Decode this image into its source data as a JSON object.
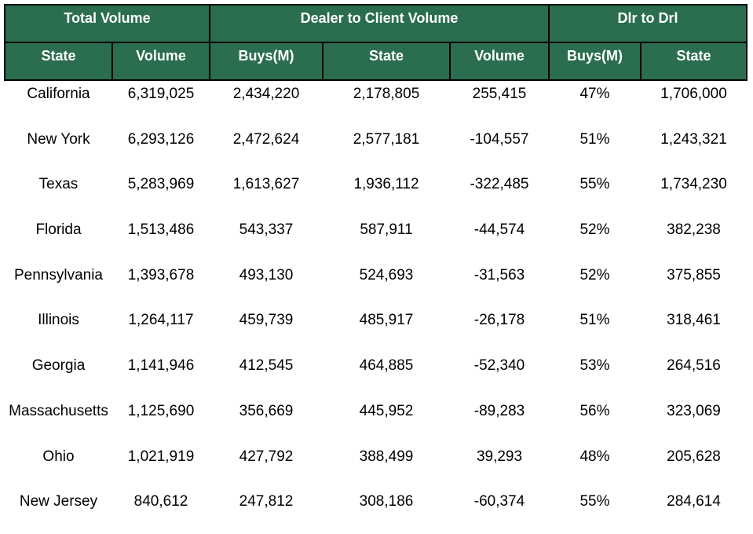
{
  "table": {
    "group_headers": [
      {
        "label": "Total Volume",
        "span": 2
      },
      {
        "label": "Dealer to Client Volume",
        "span": 3
      },
      {
        "label": "Dlr to Drl",
        "span": 2
      }
    ],
    "column_headers": [
      "State",
      "Volume",
      "Buys(M)",
      "State",
      "Volume",
      "Buys(M)",
      "State"
    ],
    "rows": [
      [
        "California",
        "6,319,025",
        "2,434,220",
        "2,178,805",
        "255,415",
        "47%",
        "1,706,000"
      ],
      [
        "New York",
        "6,293,126",
        "2,472,624",
        "2,577,181",
        "-104,557",
        "51%",
        "1,243,321"
      ],
      [
        "Texas",
        "5,283,969",
        "1,613,627",
        "1,936,112",
        "-322,485",
        "55%",
        "1,734,230"
      ],
      [
        "Florida",
        "1,513,486",
        "543,337",
        "587,911",
        "-44,574",
        "52%",
        "382,238"
      ],
      [
        "Pennsylvania",
        "1,393,678",
        "493,130",
        "524,693",
        "-31,563",
        "52%",
        "375,855"
      ],
      [
        "Illinois",
        "1,264,117",
        "459,739",
        "485,917",
        "-26,178",
        "51%",
        "318,461"
      ],
      [
        "Georgia",
        "1,141,946",
        "412,545",
        "464,885",
        "-52,340",
        "53%",
        "264,516"
      ],
      [
        "Massachusetts",
        "1,125,690",
        "356,669",
        "445,952",
        "-89,283",
        "56%",
        "323,069"
      ],
      [
        "Ohio",
        "1,021,919",
        "427,792",
        "388,499",
        "39,293",
        "48%",
        "205,628"
      ],
      [
        "New Jersey",
        "840,612",
        "247,812",
        "308,186",
        "-60,374",
        "55%",
        "284,614"
      ]
    ]
  }
}
